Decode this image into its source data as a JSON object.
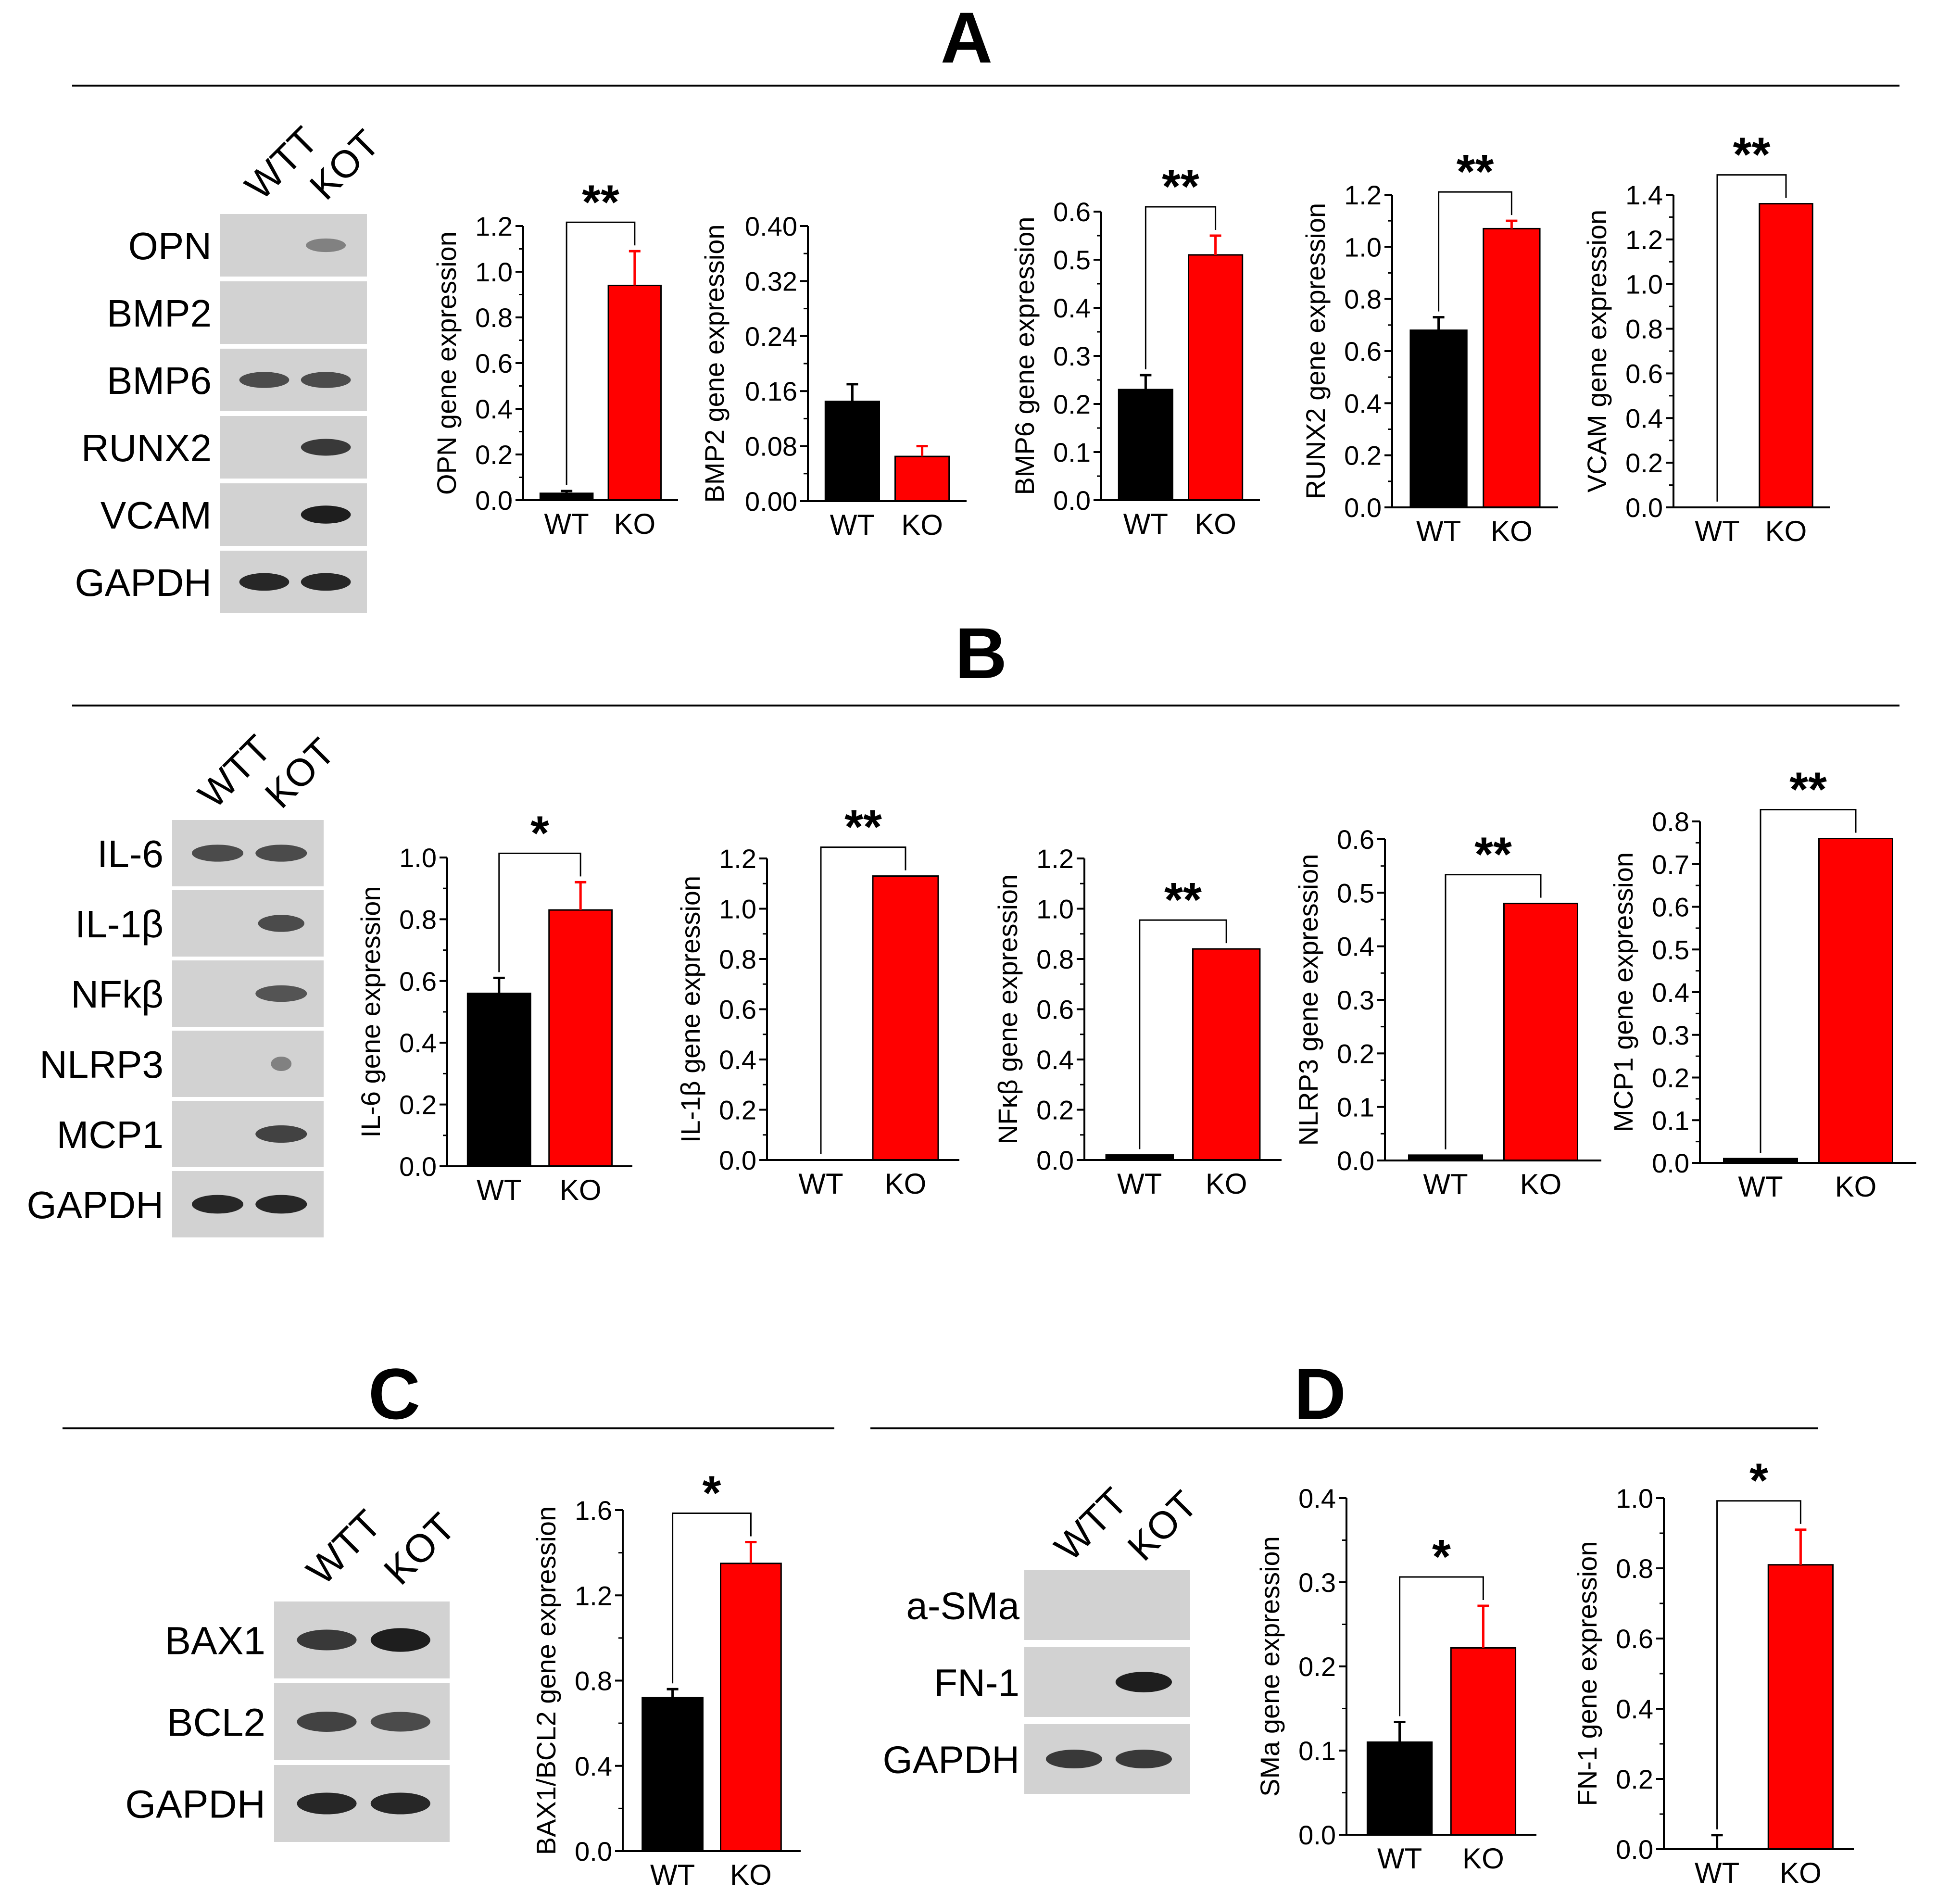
{
  "panels": [
    {
      "letter": "A",
      "blot": {
        "lanes": [
          "WTT",
          "KOT"
        ],
        "rows": [
          "OPN",
          "BMP2",
          "BMP6",
          "RUNX2",
          "VCAM",
          "GAPDH"
        ]
      }
    },
    {
      "letter": "B",
      "blot": {
        "lanes": [
          "WTT",
          "KOT"
        ],
        "rows": [
          "IL-6",
          "IL-1β",
          "NFkβ",
          "NLRP3",
          "MCP1",
          "GAPDH"
        ]
      }
    },
    {
      "letter": "C",
      "blot": {
        "lanes": [
          "WTT",
          "KOT"
        ],
        "rows": [
          "BAX1",
          "BCL2",
          "GAPDH"
        ]
      }
    },
    {
      "letter": "D",
      "blot": {
        "lanes": [
          "WTT",
          "KOT"
        ],
        "rows": [
          "a-SMa",
          "FN-1",
          "GAPDH"
        ]
      }
    }
  ],
  "colors": {
    "wt": "#000000",
    "ko": "#ff0000",
    "blot_bg": "#d2d2d2",
    "band": "#1e1e1e"
  },
  "chart_data": [
    {
      "type": "bar",
      "panel": "A",
      "categories": [
        "WT",
        "KO"
      ],
      "values": [
        0.03,
        0.94
      ],
      "errors": [
        0.01,
        0.15
      ],
      "ylabel": "OPN gene expression",
      "ylim": [
        0,
        1.2
      ],
      "yticks": [
        "0.0",
        "0.2",
        "0.4",
        "0.6",
        "0.8",
        "1.0",
        "1.2"
      ],
      "significance": "**"
    },
    {
      "type": "bar",
      "panel": "A",
      "categories": [
        "WT",
        "KO"
      ],
      "values": [
        0.145,
        0.065
      ],
      "errors": [
        0.025,
        0.015
      ],
      "ylabel": "BMP2 gene expression",
      "ylim": [
        0,
        0.4
      ],
      "yticks": [
        "0.00",
        "0.08",
        "0.16",
        "0.24",
        "0.32",
        "0.40"
      ],
      "significance": ""
    },
    {
      "type": "bar",
      "panel": "A",
      "categories": [
        "WT",
        "KO"
      ],
      "values": [
        0.23,
        0.51
      ],
      "errors": [
        0.03,
        0.04
      ],
      "ylabel": "BMP6 gene expression",
      "ylim": [
        0,
        0.6
      ],
      "yticks": [
        "0.0",
        "0.1",
        "0.2",
        "0.3",
        "0.4",
        "0.5",
        "0.6"
      ],
      "significance": "**"
    },
    {
      "type": "bar",
      "panel": "A",
      "categories": [
        "WT",
        "KO"
      ],
      "values": [
        0.68,
        1.07
      ],
      "errors": [
        0.05,
        0.03
      ],
      "ylabel": "RUNX2 gene expression",
      "ylim": [
        0,
        1.2
      ],
      "yticks": [
        "0.0",
        "0.2",
        "0.4",
        "0.6",
        "0.8",
        "1.0",
        "1.2"
      ],
      "significance": "**"
    },
    {
      "type": "bar",
      "panel": "A",
      "categories": [
        "WT",
        "KO"
      ],
      "values": [
        0.0,
        1.36
      ],
      "errors": [
        0,
        0
      ],
      "ylabel": "VCAM gene expression",
      "ylim": [
        0,
        1.4
      ],
      "yticks": [
        "0.0",
        "0.2",
        "0.4",
        "0.6",
        "0.8",
        "1.0",
        "1.2",
        "1.4"
      ],
      "significance": "**"
    },
    {
      "type": "bar",
      "panel": "B",
      "categories": [
        "WT",
        "KO"
      ],
      "values": [
        0.56,
        0.83
      ],
      "errors": [
        0.05,
        0.09
      ],
      "ylabel": "IL-6 gene expression",
      "ylim": [
        0,
        1.0
      ],
      "yticks": [
        "0.0",
        "0.2",
        "0.4",
        "0.6",
        "0.8",
        "1.0"
      ],
      "significance": "*"
    },
    {
      "type": "bar",
      "panel": "B",
      "categories": [
        "WT",
        "KO"
      ],
      "values": [
        0.0,
        1.13
      ],
      "errors": [
        0,
        0
      ],
      "ylabel": "IL-1β gene expression",
      "ylim": [
        0,
        1.2
      ],
      "yticks": [
        "0.0",
        "0.2",
        "0.4",
        "0.6",
        "0.8",
        "1.0",
        "1.2"
      ],
      "significance": "**"
    },
    {
      "type": "bar",
      "panel": "B",
      "categories": [
        "WT",
        "KO"
      ],
      "values": [
        0.02,
        0.84
      ],
      "errors": [
        0,
        0
      ],
      "ylabel": "NFκβ gene expression",
      "ylim": [
        0,
        1.2
      ],
      "yticks": [
        "0.0",
        "0.2",
        "0.4",
        "0.6",
        "0.8",
        "1.0",
        "1.2"
      ],
      "significance": "**"
    },
    {
      "type": "bar",
      "panel": "B",
      "categories": [
        "WT",
        "KO"
      ],
      "values": [
        0.01,
        0.48
      ],
      "errors": [
        0,
        0
      ],
      "ylabel": "NLRP3 gene expression",
      "ylim": [
        0,
        0.6
      ],
      "yticks": [
        "0.0",
        "0.1",
        "0.2",
        "0.3",
        "0.4",
        "0.5",
        "0.6"
      ],
      "significance": "**"
    },
    {
      "type": "bar",
      "panel": "B",
      "categories": [
        "WT",
        "KO"
      ],
      "values": [
        0.01,
        0.76
      ],
      "errors": [
        0,
        0
      ],
      "ylabel": "MCP1 gene expression",
      "ylim": [
        0,
        0.8
      ],
      "yticks": [
        "0.0",
        "0.1",
        "0.2",
        "0.3",
        "0.4",
        "0.5",
        "0.6",
        "0.7",
        "0.8"
      ],
      "significance": "**"
    },
    {
      "type": "bar",
      "panel": "C",
      "categories": [
        "WT",
        "KO"
      ],
      "values": [
        0.72,
        1.35
      ],
      "errors": [
        0.04,
        0.1
      ],
      "ylabel": "BAX1/BCL2 gene expression",
      "ylim": [
        0,
        1.6
      ],
      "yticks": [
        "0.0",
        "0.4",
        "0.8",
        "1.2",
        "1.6"
      ],
      "significance": "*"
    },
    {
      "type": "bar",
      "panel": "D",
      "categories": [
        "WT",
        "KO"
      ],
      "values": [
        0.11,
        0.222
      ],
      "errors": [
        0.024,
        0.05
      ],
      "ylabel": "SMa gene expression",
      "ylim": [
        0,
        0.4
      ],
      "yticks": [
        "0.0",
        "0.1",
        "0.2",
        "0.3",
        "0.4"
      ],
      "significance": "*"
    },
    {
      "type": "bar",
      "panel": "D",
      "categories": [
        "WT",
        "KO"
      ],
      "values": [
        0.0,
        0.81
      ],
      "errors": [
        0.04,
        0.1
      ],
      "ylabel": "FN-1 gene expression",
      "ylim": [
        0,
        1.0
      ],
      "yticks": [
        "0.0",
        "0.2",
        "0.4",
        "0.6",
        "0.8",
        "1.0"
      ],
      "significance": "*"
    }
  ]
}
